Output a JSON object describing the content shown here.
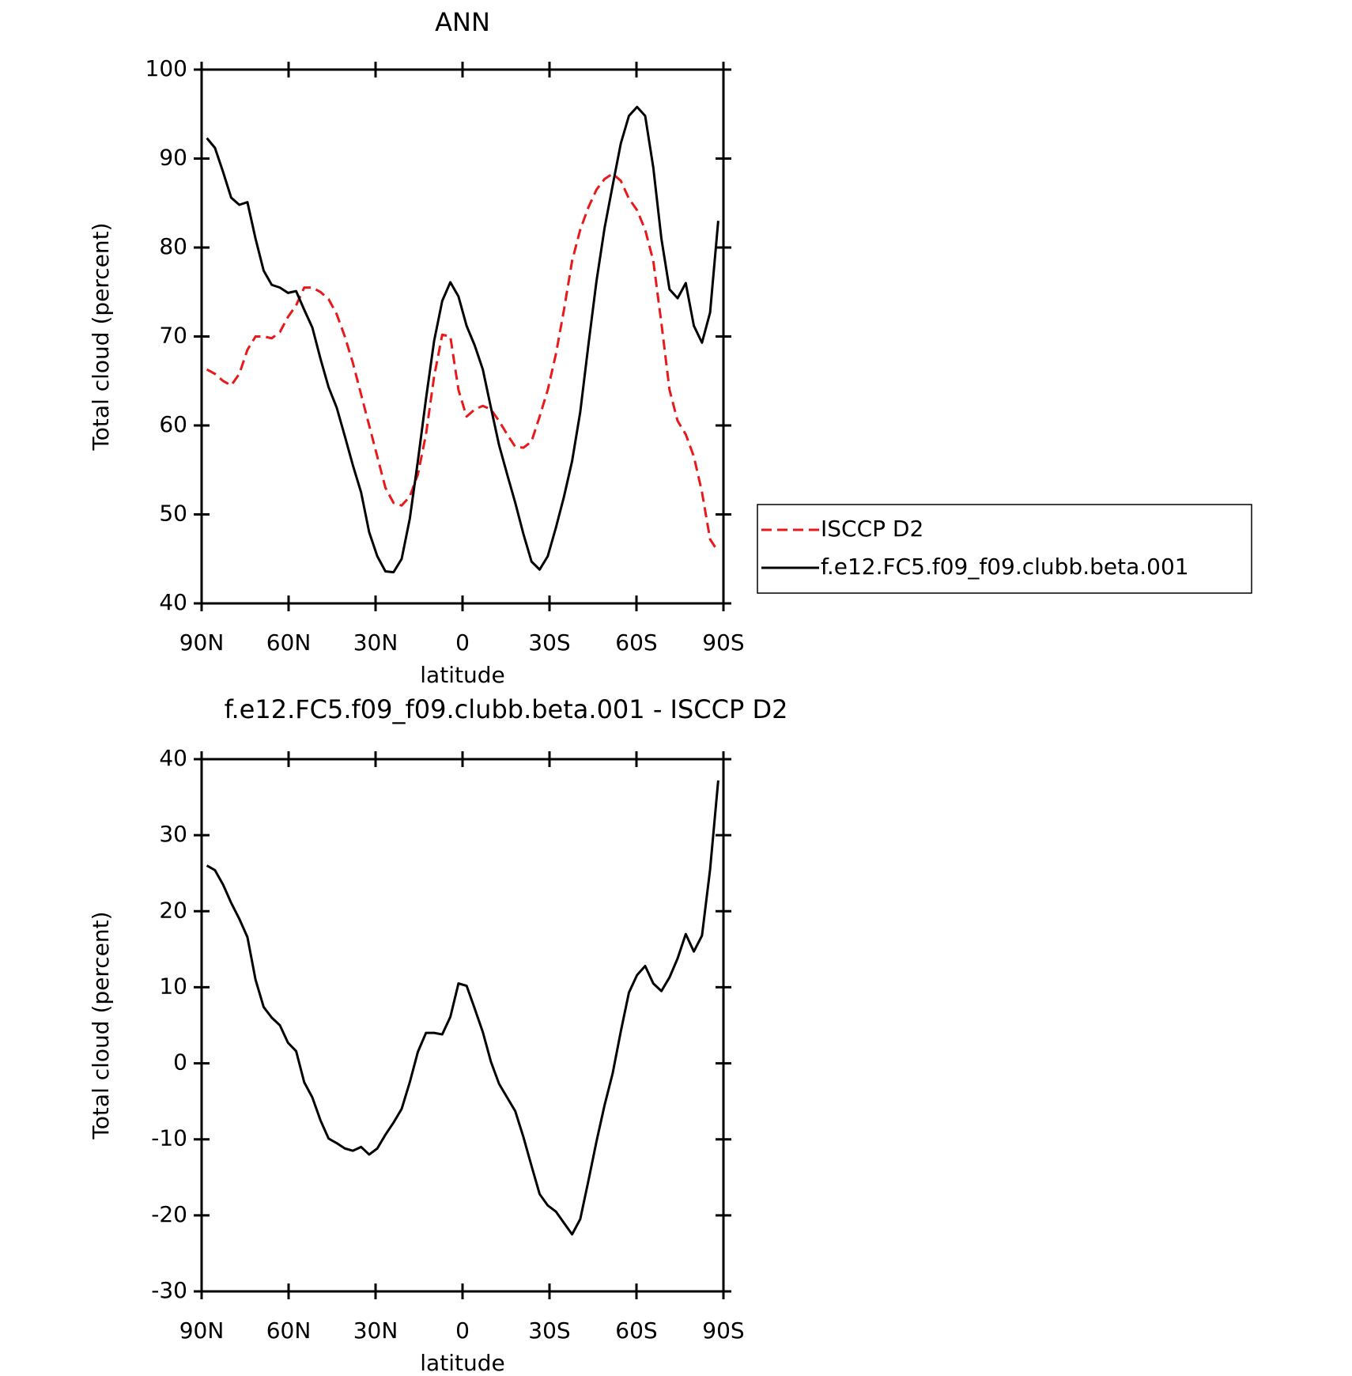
{
  "chart_data": [
    {
      "type": "line",
      "title": "ANN",
      "xlabel": "latitude",
      "ylabel": "Total cloud (percent)",
      "x": [
        88.2,
        85.4,
        82.6,
        79.8,
        77,
        74.2,
        71.4,
        68.6,
        65.8,
        63,
        60.2,
        57.4,
        54.6,
        51.8,
        49,
        46.2,
        43.4,
        40.6,
        37.8,
        35,
        32.2,
        29.4,
        26.6,
        23.8,
        21,
        18.2,
        15.4,
        12.6,
        9.8,
        7,
        4.2,
        1.4,
        -1.4,
        -4.2,
        -7,
        -9.8,
        -12.6,
        -15.4,
        -18.2,
        -21,
        -23.8,
        -26.6,
        -29.4,
        -32.2,
        -35,
        -37.8,
        -40.6,
        -43.4,
        -46.2,
        -49,
        -51.8,
        -54.6,
        -57.4,
        -60.2,
        -63,
        -65.8,
        -68.6,
        -71.4,
        -74.2,
        -77,
        -79.8,
        -82.6,
        -85.4,
        -88.2
      ],
      "series": [
        {
          "name": "ISCCP D2",
          "color": "#e8191b",
          "style": "dashed",
          "values": [
            66.3,
            65.8,
            65,
            64.5,
            65.8,
            68.5,
            70,
            70,
            69.8,
            70.5,
            72.2,
            73.5,
            75.5,
            75.5,
            75,
            74.2,
            72.5,
            70,
            67,
            63.5,
            60,
            56.5,
            53,
            51.3,
            51,
            52,
            54.5,
            59,
            65.5,
            70.2,
            70,
            64,
            61,
            61.8,
            62.2,
            61.8,
            60.5,
            59,
            57.6,
            57.5,
            58.2,
            61,
            64,
            68,
            73,
            78.5,
            82,
            84.5,
            86.5,
            87.7,
            88.3,
            87.5,
            85.5,
            84.2,
            82,
            78.5,
            71.5,
            64,
            60.5,
            59,
            56.5,
            52.5,
            47.2,
            45.8
          ]
        },
        {
          "name": "f.e12.FC5.f09_f09.clubb.beta.001",
          "color": "#000000",
          "style": "solid",
          "values": [
            92.3,
            91.2,
            88.5,
            85.6,
            84.8,
            85.1,
            81,
            77.4,
            75.8,
            75.5,
            74.9,
            75.1,
            73,
            71,
            67.5,
            64.3,
            62,
            58.8,
            55.5,
            52.5,
            48,
            45.3,
            43.6,
            43.5,
            45,
            49.5,
            56,
            63,
            69.5,
            74,
            76.1,
            74.5,
            71.2,
            69,
            66.3,
            62,
            57.8,
            54.5,
            51.3,
            47.8,
            44.7,
            43.8,
            45.3,
            48.5,
            52,
            56,
            61.5,
            69,
            76.2,
            82.2,
            87,
            91.7,
            94.8,
            95.8,
            94.8,
            89,
            81,
            75.3,
            74.3,
            76,
            71.2,
            69.3,
            72.7,
            83
          ]
        }
      ],
      "xlim": [
        90,
        -90
      ],
      "xticks": [
        {
          "value": 90,
          "label": "90N"
        },
        {
          "value": 60,
          "label": "60N"
        },
        {
          "value": 30,
          "label": "30N"
        },
        0,
        {
          "value": -30,
          "label": "30S"
        },
        {
          "value": -60,
          "label": "60S"
        },
        {
          "value": -90,
          "label": "90S"
        }
      ],
      "ylim": [
        40,
        100
      ],
      "yticks": [
        40,
        50,
        60,
        70,
        80,
        90,
        100
      ],
      "legend": "right"
    },
    {
      "type": "line",
      "title": "f.e12.FC5.f09_f09.clubb.beta.001 - ISCCP D2",
      "xlabel": "latitude",
      "ylabel": "Total cloud (percent)",
      "x": [
        88.2,
        85.4,
        82.6,
        79.8,
        77,
        74.2,
        71.4,
        68.6,
        65.8,
        63,
        60.2,
        57.4,
        54.6,
        51.8,
        49,
        46.2,
        43.4,
        40.6,
        37.8,
        35,
        32.2,
        29.4,
        26.6,
        23.8,
        21,
        18.2,
        15.4,
        12.6,
        9.8,
        7,
        4.2,
        1.4,
        -1.4,
        -4.2,
        -7,
        -9.8,
        -12.6,
        -15.4,
        -18.2,
        -21,
        -23.8,
        -26.6,
        -29.4,
        -32.2,
        -35,
        -37.8,
        -40.6,
        -43.4,
        -46.2,
        -49,
        -51.8,
        -54.6,
        -57.4,
        -60.2,
        -63,
        -65.8,
        -68.6,
        -71.4,
        -74.2,
        -77,
        -79.8,
        -82.6,
        -85.4,
        -88.2
      ],
      "series": [
        {
          "color": "#000000",
          "style": "solid",
          "values": [
            26,
            25.4,
            23.5,
            21.1,
            19,
            16.6,
            11,
            7.4,
            6,
            5,
            2.7,
            1.6,
            -2.5,
            -4.5,
            -7.5,
            -9.9,
            -10.5,
            -11.2,
            -11.5,
            -11,
            -12,
            -11.2,
            -9.4,
            -7.8,
            -6,
            -2.5,
            1.5,
            4,
            4,
            3.8,
            6.1,
            10.5,
            10.2,
            7.2,
            4.1,
            0.2,
            -2.7,
            -4.5,
            -6.3,
            -9.7,
            -13.5,
            -17.2,
            -18.7,
            -19.5,
            -21,
            -22.5,
            -20.5,
            -15.5,
            -10.3,
            -5.5,
            -1.3,
            4.2,
            9.3,
            11.6,
            12.8,
            10.5,
            9.5,
            11.3,
            13.8,
            17,
            14.7,
            16.8,
            25.5,
            37.2
          ]
        }
      ],
      "xlim": [
        90,
        -90
      ],
      "xticks": [
        {
          "value": 90,
          "label": "90N"
        },
        {
          "value": 60,
          "label": "60N"
        },
        {
          "value": 30,
          "label": "30N"
        },
        0,
        {
          "value": -30,
          "label": "30S"
        },
        {
          "value": -60,
          "label": "60S"
        },
        {
          "value": -90,
          "label": "90S"
        }
      ],
      "ylim": [
        -30,
        40
      ],
      "yticks": [
        -30,
        -20,
        -10,
        0,
        10,
        20,
        30,
        40
      ]
    }
  ]
}
